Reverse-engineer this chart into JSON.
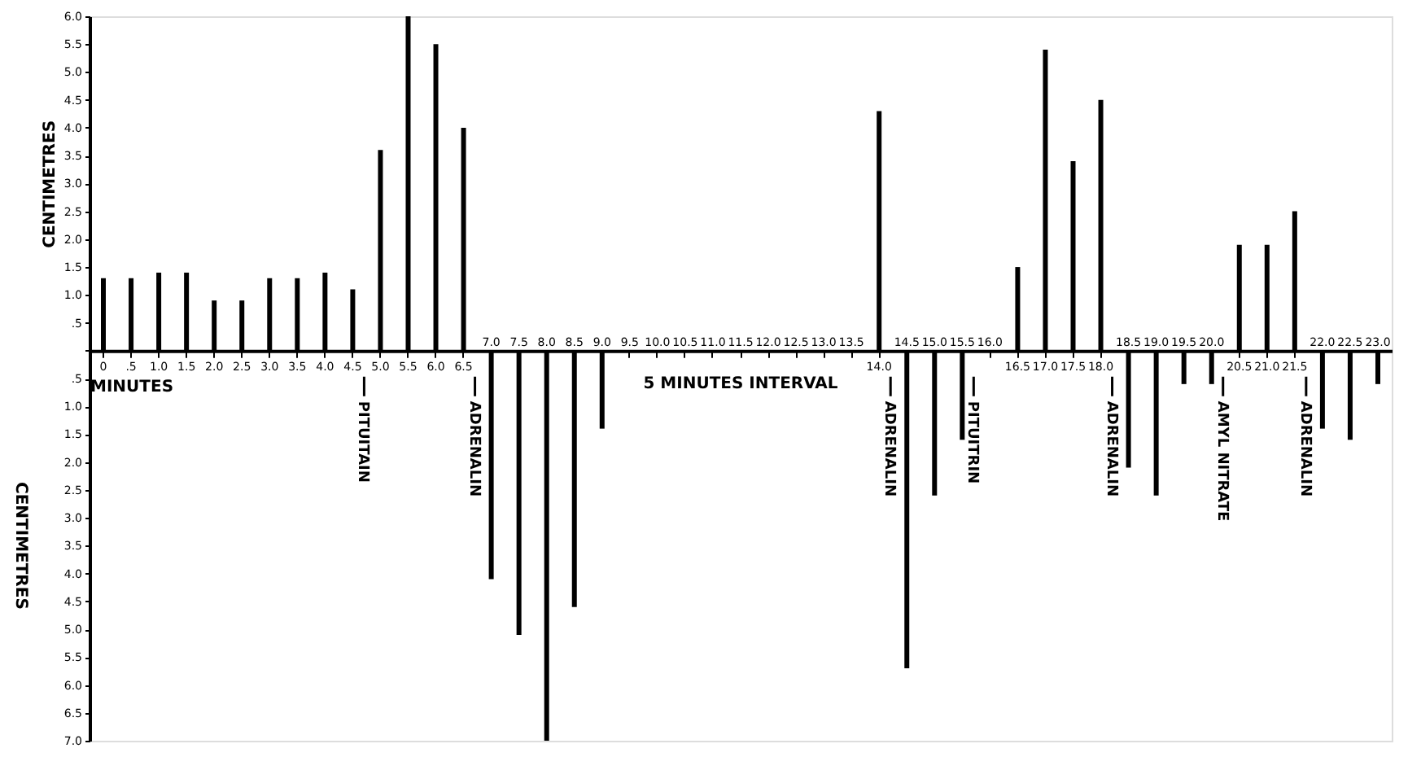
{
  "chart_data": {
    "type": "bar",
    "xlabel": "MINUTES",
    "ylabel": "CENTIMETRES",
    "color": "#000000",
    "categories": [
      "0",
      ".5",
      "1.0",
      "1.5",
      "2.0",
      "2.5",
      "3.0",
      "3.5",
      "4.0",
      "4.5",
      "5.0",
      "5.5",
      "6.0",
      "6.5",
      "7.0",
      "7.5",
      "8.0",
      "8.5",
      "9.0",
      "9.5",
      "10.0",
      "10.5",
      "11.0",
      "11.5",
      "12.0",
      "12.5",
      "13.0",
      "13.5",
      "14.0",
      "14.5",
      "15.0",
      "15.5",
      "16.0",
      "16.5",
      "17.0",
      "17.5",
      "18.0",
      "18.5",
      "19.0",
      "19.5",
      "20.0",
      "20.5",
      "21.0",
      "21.5",
      "22.0",
      "22.5",
      "23.0"
    ],
    "values": [
      1.3,
      1.3,
      1.4,
      1.4,
      0.9,
      0.9,
      1.3,
      1.3,
      1.4,
      1.1,
      3.6,
      6.0,
      5.5,
      4.0,
      -4.1,
      -5.1,
      -7.0,
      -4.6,
      -1.4,
      null,
      null,
      null,
      null,
      null,
      null,
      null,
      null,
      null,
      4.3,
      -5.7,
      -2.6,
      -1.6,
      null,
      1.5,
      5.4,
      3.4,
      4.5,
      -2.1,
      -2.6,
      -0.6,
      -0.6,
      1.9,
      1.9,
      2.5,
      -1.4,
      -1.6,
      -0.6
    ],
    "ylim": [
      -7,
      6
    ],
    "yticks": [
      {
        "value": -7,
        "label": "7.0"
      },
      {
        "value": -6.5,
        "label": "6.5"
      },
      {
        "value": -6,
        "label": "6.0"
      },
      {
        "value": -5.5,
        "label": "5.5"
      },
      {
        "value": -5,
        "label": "5.0"
      },
      {
        "value": -4.5,
        "label": "4.5"
      },
      {
        "value": -4,
        "label": "4.0"
      },
      {
        "value": -3.5,
        "label": "3.5"
      },
      {
        "value": -3,
        "label": "3.0"
      },
      {
        "value": -2.5,
        "label": "2.5"
      },
      {
        "value": -2,
        "label": "2.0"
      },
      {
        "value": -1.5,
        "label": "1.5"
      },
      {
        "value": -1,
        "label": "1.0"
      },
      {
        "value": -0.5,
        "label": ".5"
      },
      {
        "value": 0,
        "label": null
      },
      {
        "value": 0.5,
        "label": ".5"
      },
      {
        "value": 1,
        "label": "1.0"
      },
      {
        "value": 1.5,
        "label": "1.5"
      },
      {
        "value": 2,
        "label": "2.0"
      },
      {
        "value": 2.5,
        "label": "2.5"
      },
      {
        "value": 3,
        "label": "3.0"
      },
      {
        "value": 3.5,
        "label": "3.5"
      },
      {
        "value": 4,
        "label": "4.0"
      },
      {
        "value": 4.5,
        "label": "4.5"
      },
      {
        "value": 5,
        "label": "5.0"
      },
      {
        "value": 5.5,
        "label": "5.5"
      },
      {
        "value": 6,
        "label": "6.0"
      }
    ],
    "annotations": [
      "5 MINUTES INTERVAL",
      "CENTIMETRES"
    ],
    "ref_lines": [
      {
        "axis": "x",
        "value": "4.5",
        "label": "PITUITAIN"
      },
      {
        "axis": "x",
        "value": "6.5",
        "label": "ADRENALIN"
      },
      {
        "axis": "x",
        "value": "14.0",
        "label": "ADRENALIN"
      },
      {
        "axis": "x",
        "value": "15.5",
        "label": "PITUITRIN"
      },
      {
        "axis": "x",
        "value": "18.0",
        "label": "ADRENALIN"
      },
      {
        "axis": "x",
        "value": "20.0",
        "label": "AMYL NITRATE"
      },
      {
        "axis": "x",
        "value": "21.5",
        "label": "ADRENALIN"
      }
    ]
  }
}
